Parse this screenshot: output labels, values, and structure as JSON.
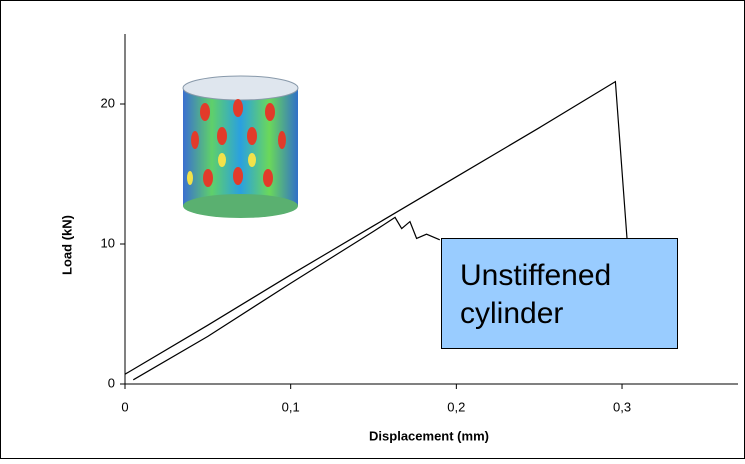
{
  "chart_data": {
    "type": "line",
    "ylabel": "Load (kN)",
    "xlabel": "Displacement  (mm)",
    "annotation": "Unstiffened cylinder",
    "series": [
      {
        "color": "#000000",
        "x": [
          0,
          0.05,
          0.1,
          0.15,
          0.2,
          0.25,
          0.296,
          0.303
        ],
        "values": [
          0.7,
          4.2,
          7.8,
          11.3,
          14.8,
          18.3,
          21.6,
          10.4
        ]
      },
      {
        "color": "#000000",
        "x": [
          0.005,
          0.05,
          0.1,
          0.15,
          0.163,
          0.167,
          0.172,
          0.176,
          0.182,
          0.19
        ],
        "values": [
          0.3,
          3.4,
          7.2,
          10.9,
          11.9,
          11.1,
          11.6,
          10.4,
          10.7,
          10.3
        ]
      }
    ],
    "xlim": [
      0,
      0.37
    ],
    "ylim": [
      0,
      25
    ],
    "xticks": [
      0,
      {
        "value": 0.1,
        "label": "0,1"
      },
      {
        "value": 0.2,
        "label": "0,2"
      },
      {
        "value": 0.3,
        "label": "0,3"
      }
    ],
    "yticks": [
      0,
      10,
      20
    ],
    "grid": false
  }
}
